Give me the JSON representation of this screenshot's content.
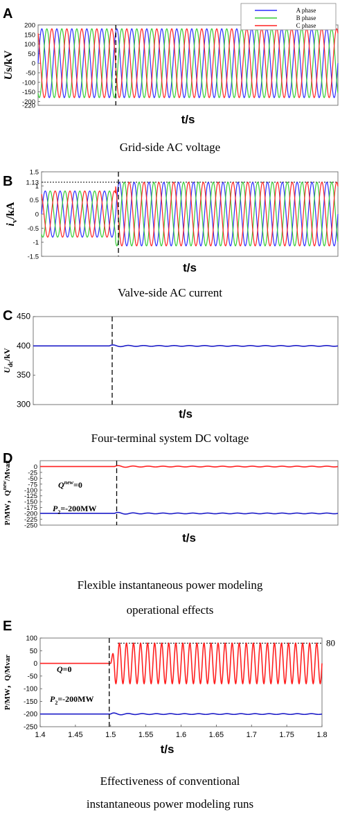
{
  "chart_data": [
    {
      "panel_letter": "A",
      "type": "line",
      "ylabel_main": "U",
      "ylabel_rest": "s/kV",
      "xlabel": "t/s",
      "ylim": [
        -220,
        200
      ],
      "yticks": [
        200,
        150,
        100,
        50,
        0,
        -50,
        -100,
        -150,
        -200,
        -220
      ],
      "ytick_labels": [
        "200",
        "150",
        "100",
        "50",
        "0",
        "-50",
        "-100",
        "-150",
        "-200",
        "-220"
      ],
      "xlim": [
        1.4,
        1.8
      ],
      "fault_time": 1.5,
      "legend": {
        "position": "top-right",
        "labels": [
          "A phase",
          "B phase",
          "C phase"
        ]
      },
      "series": [
        {
          "name": "A phase",
          "color": "#2c2cff",
          "amplitude": 180,
          "frequency_hz": 50,
          "phase_deg": 0
        },
        {
          "name": "B phase",
          "color": "#33cc33",
          "amplitude": 180,
          "frequency_hz": 50,
          "phase_deg": -120
        },
        {
          "name": "C phase",
          "color": "#ff2020",
          "amplitude": 180,
          "frequency_hz": 50,
          "phase_deg": 120
        }
      ],
      "caption": "Grid-side AC voltage"
    },
    {
      "panel_letter": "B",
      "type": "line",
      "ylabel_main": "i",
      "ylabel_sub": "v",
      "ylabel_rest": "/kA",
      "xlabel": "t/s",
      "ylim": [
        -1.5,
        1.5
      ],
      "yticks": [
        1.5,
        1.13,
        1,
        0.5,
        0,
        -0.5,
        -1,
        -1.5
      ],
      "ytick_labels": [
        "1.5",
        "1.13",
        "1",
        "0.5",
        "0",
        "-0.5",
        "-1",
        "-1.5"
      ],
      "xlim": [
        1.4,
        1.8
      ],
      "fault_time": 1.5,
      "reference_line": 1.13,
      "amplitude_before": 0.82,
      "amplitude_after": 1.13,
      "series": [
        {
          "color": "#2c2cff",
          "frequency_hz": 50,
          "phase_deg": 0
        },
        {
          "color": "#33cc33",
          "frequency_hz": 50,
          "phase_deg": -120
        },
        {
          "color": "#ff2020",
          "frequency_hz": 50,
          "phase_deg": 120
        }
      ],
      "caption": "Valve-side AC current"
    },
    {
      "panel_letter": "C",
      "type": "line",
      "ylabel_main": "U",
      "ylabel_sub": "dc",
      "ylabel_rest": "/kV",
      "xlabel": "t/s",
      "ylim": [
        300,
        450
      ],
      "yticks": [
        450,
        400,
        350,
        300
      ],
      "ytick_labels": [
        "450",
        "400",
        "350",
        "300"
      ],
      "xlim": [
        1.4,
        1.8
      ],
      "fault_time": 1.5,
      "series": [
        {
          "color": "#1c1cc8",
          "base": 400,
          "ripple": 0.6
        }
      ],
      "caption": "Four-terminal system DC voltage"
    },
    {
      "panel_letter": "D",
      "type": "line",
      "ylabel_text": "P/MW，Q",
      "ylabel_sup": "new",
      "ylabel_rest": "/Mvar",
      "xlabel": "t/s",
      "ylim": [
        -250,
        25
      ],
      "yticks": [
        0,
        -25,
        -50,
        -75,
        -100,
        -125,
        -150,
        -175,
        -200,
        -225,
        -250
      ],
      "ytick_labels": [
        "0",
        "-25",
        "-50",
        "-75",
        "-100",
        "-125",
        "-150",
        "-175",
        "-200",
        "-225",
        "-250"
      ],
      "xlim": [
        1.4,
        1.8
      ],
      "fault_time": 1.5,
      "annotations": [
        {
          "main": "Q",
          "sup": "new",
          "rest": "=0"
        },
        {
          "main": "P",
          "sub": "2",
          "rest": "=-200MW"
        }
      ],
      "series": [
        {
          "color": "#ff2020",
          "base": 0,
          "ripple": 1.5
        },
        {
          "color": "#1c1cc8",
          "base": -200,
          "ripple": 1.5
        }
      ],
      "caption_lines": [
        "Flexible instantaneous power modeling",
        "operational effects"
      ]
    },
    {
      "panel_letter": "E",
      "type": "line",
      "ylabel_text": "P/MW，Q/Mvar",
      "xlabel": "t/s",
      "ylim": [
        -250,
        100
      ],
      "yticks": [
        100,
        50,
        0,
        -50,
        -100,
        -150,
        -200,
        -250
      ],
      "ytick_labels": [
        "100",
        "50",
        "0",
        "-50",
        "-100",
        "-150",
        "-200",
        "-250"
      ],
      "xlim": [
        1.4,
        1.8
      ],
      "xticks": [
        1.4,
        1.45,
        1.5,
        1.55,
        1.6,
        1.65,
        1.7,
        1.75,
        1.8
      ],
      "xtick_labels": [
        "1.4",
        "1.45",
        "1.5",
        "1.55",
        "1.6",
        "1.65",
        "1.7",
        "1.75",
        "1.8"
      ],
      "fault_time": 1.5,
      "reference_line": 80,
      "reference_label": "80",
      "annotations": [
        {
          "main": "Q",
          "rest": "=0"
        },
        {
          "main": "P",
          "sub": "2",
          "rest": "=-200MW"
        }
      ],
      "series": [
        {
          "color": "#ff2020",
          "base": 0,
          "oscillation_amplitude": 80,
          "oscillation_frequency_hz": 100
        },
        {
          "color": "#1c1cc8",
          "base": -200,
          "ripple": 1.5
        }
      ],
      "caption_lines": [
        "Effectiveness of conventional",
        "instantaneous power modeling runs"
      ]
    }
  ]
}
